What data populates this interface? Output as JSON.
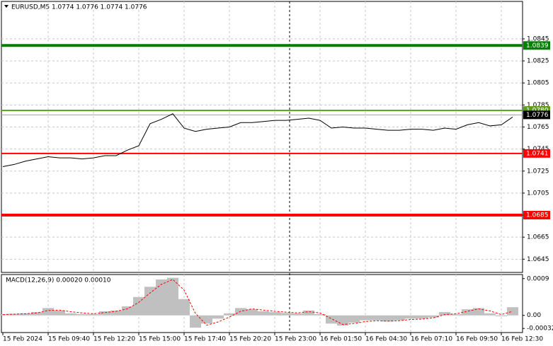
{
  "chart_data": {
    "type": "line",
    "title": "EURUSD,M5  1.0774 1.0776 1.0774 1.0776",
    "categories": [
      "15 Feb 2024",
      null,
      null,
      null,
      "15 Feb 09:40",
      null,
      null,
      null,
      "15 Feb 12:20",
      null,
      null,
      null,
      "15 Feb 15:00",
      null,
      null,
      null,
      "15 Feb 17:40",
      null,
      null,
      null,
      "15 Feb 20:20",
      null,
      null,
      null,
      "15 Feb 23:00",
      null,
      null,
      null,
      "16 Feb 01:50",
      null,
      null,
      null,
      "16 Feb 04:30",
      null,
      null,
      null,
      "16 Feb 07:10",
      null,
      null,
      null,
      "16 Feb 09:50",
      null,
      null,
      null,
      "16 Feb 12:30",
      null
    ],
    "series": [
      {
        "name": "EURUSD",
        "color": "#000000",
        "values": [
          1.0729,
          1.0731,
          1.0734,
          1.0736,
          1.0738,
          1.0737,
          1.0737,
          1.0736,
          1.0737,
          1.0739,
          1.0739,
          1.0744,
          1.0748,
          1.0768,
          1.0772,
          1.0777,
          1.0764,
          1.0761,
          1.0763,
          1.0764,
          1.0765,
          1.0769,
          1.0769,
          1.077,
          1.0771,
          1.0771,
          1.0772,
          1.0773,
          1.0771,
          1.0764,
          1.0765,
          1.0764,
          1.0764,
          1.0763,
          1.0762,
          1.0762,
          1.0763,
          1.0763,
          1.0762,
          1.0764,
          1.0763,
          1.0767,
          1.0769,
          1.0766,
          1.0767,
          1.0774
        ]
      }
    ],
    "ylim": [
      1.0633,
      1.0879
    ],
    "yticks": [
      1.0645,
      1.0665,
      1.0685,
      1.0705,
      1.0725,
      1.0745,
      1.0765,
      1.0785,
      1.0805,
      1.0825,
      1.0845
    ],
    "grid": true,
    "levels": [
      {
        "value": 1.0839,
        "label": "1.0839",
        "color": "#008000",
        "width": 4
      },
      {
        "value": 1.078,
        "label": "1.0780",
        "color": "#5a9e1a",
        "width": 2
      },
      {
        "value": 1.0776,
        "label": "1.0776",
        "color": "#000000",
        "width": 1
      },
      {
        "value": 1.0741,
        "label": "1.0741",
        "color": "#ff0000",
        "width": 2
      },
      {
        "value": 1.0685,
        "label": "1.0685",
        "color": "#ff0000",
        "width": 4
      }
    ],
    "macd": {
      "title": "MACD(12,26,9) 0.00020 0.00010",
      "ylim": [
        -0.00042,
        0.001
      ],
      "yticks": [
        {
          "value": -0.00032,
          "label": "-0.00032"
        },
        {
          "value": 0,
          "label": "0.00"
        },
        0.0009
      ],
      "histogram": {
        "color": "#c0c0c0",
        "values": [
          3e-05,
          4e-05,
          5e-05,
          8e-05,
          0.00018,
          0.00012,
          5e-05,
          3e-05,
          3e-05,
          0.0001,
          0.00012,
          0.00022,
          0.00045,
          0.0007,
          0.00088,
          0.00092,
          0.0004,
          -0.0003,
          -0.0002,
          -8e-05,
          5e-05,
          0.00018,
          0.00015,
          0.0001,
          8e-05,
          6e-05,
          5e-05,
          0.00012,
          3e-05,
          -0.0002,
          -0.00025,
          -0.00018,
          -0.00012,
          -0.00012,
          -0.00015,
          -0.00012,
          -8e-05,
          -8e-05,
          -5e-05,
          8e-05,
          3e-05,
          0.00015,
          0.00018,
          5e-05,
          -2e-05,
          0.0002
        ]
      },
      "signal": {
        "color": "#ff0000",
        "values": [
          2e-05,
          3e-05,
          4e-05,
          6e-05,
          0.00012,
          0.00013,
          9e-05,
          6e-05,
          4e-05,
          7e-05,
          0.0001,
          0.00016,
          0.00032,
          0.00055,
          0.00076,
          0.00088,
          0.00062,
          5e-05,
          -0.00024,
          -0.00016,
          -4e-05,
          0.0001,
          0.00016,
          0.00013,
          0.0001,
          8e-05,
          6e-05,
          9e-05,
          6e-05,
          -8e-05,
          -0.00022,
          -0.0002,
          -0.00015,
          -0.00013,
          -0.00014,
          -0.00013,
          -0.0001,
          -9e-05,
          -6e-05,
          2e-05,
          4e-05,
          0.0001,
          0.00016,
          0.00011,
          2e-05,
          0.0001
        ]
      }
    }
  }
}
